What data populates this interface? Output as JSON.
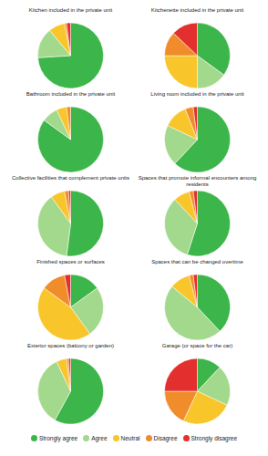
{
  "chart_data": [
    {
      "type": "pie",
      "title": "Kitchen included in the private unit",
      "categories": [
        "Strongly agree",
        "Agree",
        "Neutral",
        "Disagree",
        "Strongly disagree"
      ],
      "values": [
        74,
        15,
        8,
        1,
        2
      ],
      "colors": [
        "#3cb54a",
        "#a3d98c",
        "#f8c52b",
        "#f08c2a",
        "#e3302f"
      ],
      "legend": "bottom"
    },
    {
      "type": "pie",
      "title": "Kitchenette included in the private unit",
      "categories": [
        "Strongly agree",
        "Agree",
        "Neutral",
        "Disagree",
        "Strongly disagree"
      ],
      "values": [
        35,
        15,
        25,
        12,
        13
      ],
      "colors": [
        "#3cb54a",
        "#a3d98c",
        "#f8c52b",
        "#f08c2a",
        "#e3302f"
      ]
    },
    {
      "type": "pie",
      "title": "Bathroom included in the private unit",
      "categories": [
        "Strongly agree",
        "Agree",
        "Neutral",
        "Disagree",
        "Strongly disagree"
      ],
      "values": [
        85,
        8,
        5,
        2,
        0
      ],
      "colors": [
        "#3cb54a",
        "#a3d98c",
        "#f8c52b",
        "#f08c2a",
        "#e3302f"
      ]
    },
    {
      "type": "pie",
      "title": "Living room included in the private unit",
      "categories": [
        "Strongly agree",
        "Agree",
        "Neutral",
        "Disagree",
        "Strongly disagree"
      ],
      "values": [
        62,
        20,
        12,
        4,
        2
      ],
      "colors": [
        "#3cb54a",
        "#a3d98c",
        "#f8c52b",
        "#f08c2a",
        "#e3302f"
      ]
    },
    {
      "type": "pie",
      "title": "Collective facilities that complement private units",
      "categories": [
        "Strongly agree",
        "Agree",
        "Neutral",
        "Disagree",
        "Strongly disagree"
      ],
      "values": [
        52,
        38,
        7,
        2,
        1
      ],
      "colors": [
        "#3cb54a",
        "#a3d98c",
        "#f8c52b",
        "#f08c2a",
        "#e3302f"
      ]
    },
    {
      "type": "pie",
      "title": "Spaces that promote informal encounters among residents",
      "categories": [
        "Strongly agree",
        "Agree",
        "Neutral",
        "Disagree",
        "Strongly disagree"
      ],
      "values": [
        55,
        33,
        8,
        2,
        2
      ],
      "colors": [
        "#3cb54a",
        "#a3d98c",
        "#f8c52b",
        "#f08c2a",
        "#e3302f"
      ]
    },
    {
      "type": "pie",
      "title": "Finished spaces or surfaces",
      "categories": [
        "Strongly agree",
        "Agree",
        "Neutral",
        "Disagree",
        "Strongly disagree"
      ],
      "values": [
        15,
        25,
        45,
        12,
        3
      ],
      "colors": [
        "#3cb54a",
        "#a3d98c",
        "#f8c52b",
        "#f08c2a",
        "#e3302f"
      ]
    },
    {
      "type": "pie",
      "title": "Spaces that can be changed overtime",
      "categories": [
        "Strongly agree",
        "Agree",
        "Neutral",
        "Disagree",
        "Strongly disagree"
      ],
      "values": [
        38,
        48,
        10,
        2,
        2
      ],
      "colors": [
        "#3cb54a",
        "#a3d98c",
        "#f8c52b",
        "#f08c2a",
        "#e3302f"
      ]
    },
    {
      "type": "pie",
      "title": "Exterior spaces (balcony or garden)",
      "categories": [
        "Strongly agree",
        "Agree",
        "Neutral",
        "Disagree",
        "Strongly disagree"
      ],
      "values": [
        58,
        35,
        5,
        1,
        1
      ],
      "colors": [
        "#3cb54a",
        "#a3d98c",
        "#f8c52b",
        "#f08c2a",
        "#e3302f"
      ]
    },
    {
      "type": "pie",
      "title": "Garage (or space for the car)",
      "categories": [
        "Strongly agree",
        "Agree",
        "Neutral",
        "Disagree",
        "Strongly disagree"
      ],
      "values": [
        12,
        20,
        25,
        18,
        25
      ],
      "colors": [
        "#3cb54a",
        "#a3d98c",
        "#f8c52b",
        "#f08c2a",
        "#e3302f"
      ]
    }
  ]
}
